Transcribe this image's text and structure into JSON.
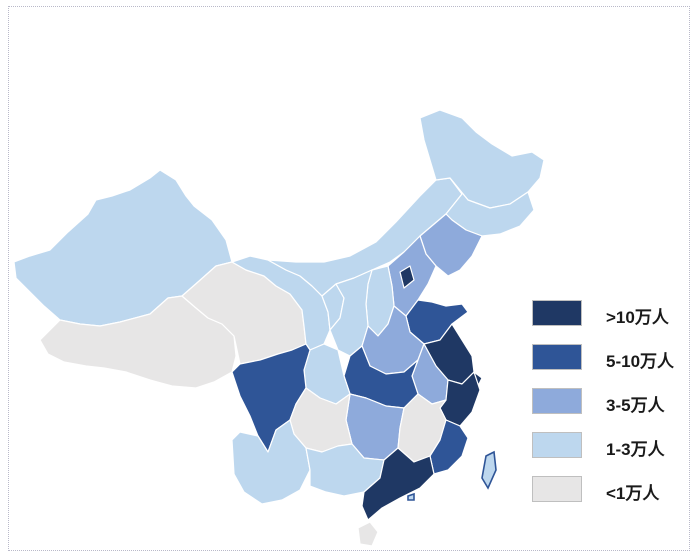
{
  "colors": {
    "level_gt10": "#1f3864",
    "level_5_10": "#2f5597",
    "level_3_5": "#8eaadb",
    "level_1_3": "#bdd7ee",
    "level_lt1": "#e7e6e6"
  },
  "legend": {
    "items": [
      {
        "label": ">10万人",
        "level": "level_gt10"
      },
      {
        "label": "5-10万人",
        "level": "level_5_10"
      },
      {
        "label": "3-5万人",
        "level": "level_3_5"
      },
      {
        "label": "1-3万人",
        "level": "level_1_3"
      },
      {
        "label": "<1万人",
        "level": "level_lt1"
      }
    ]
  }
}
